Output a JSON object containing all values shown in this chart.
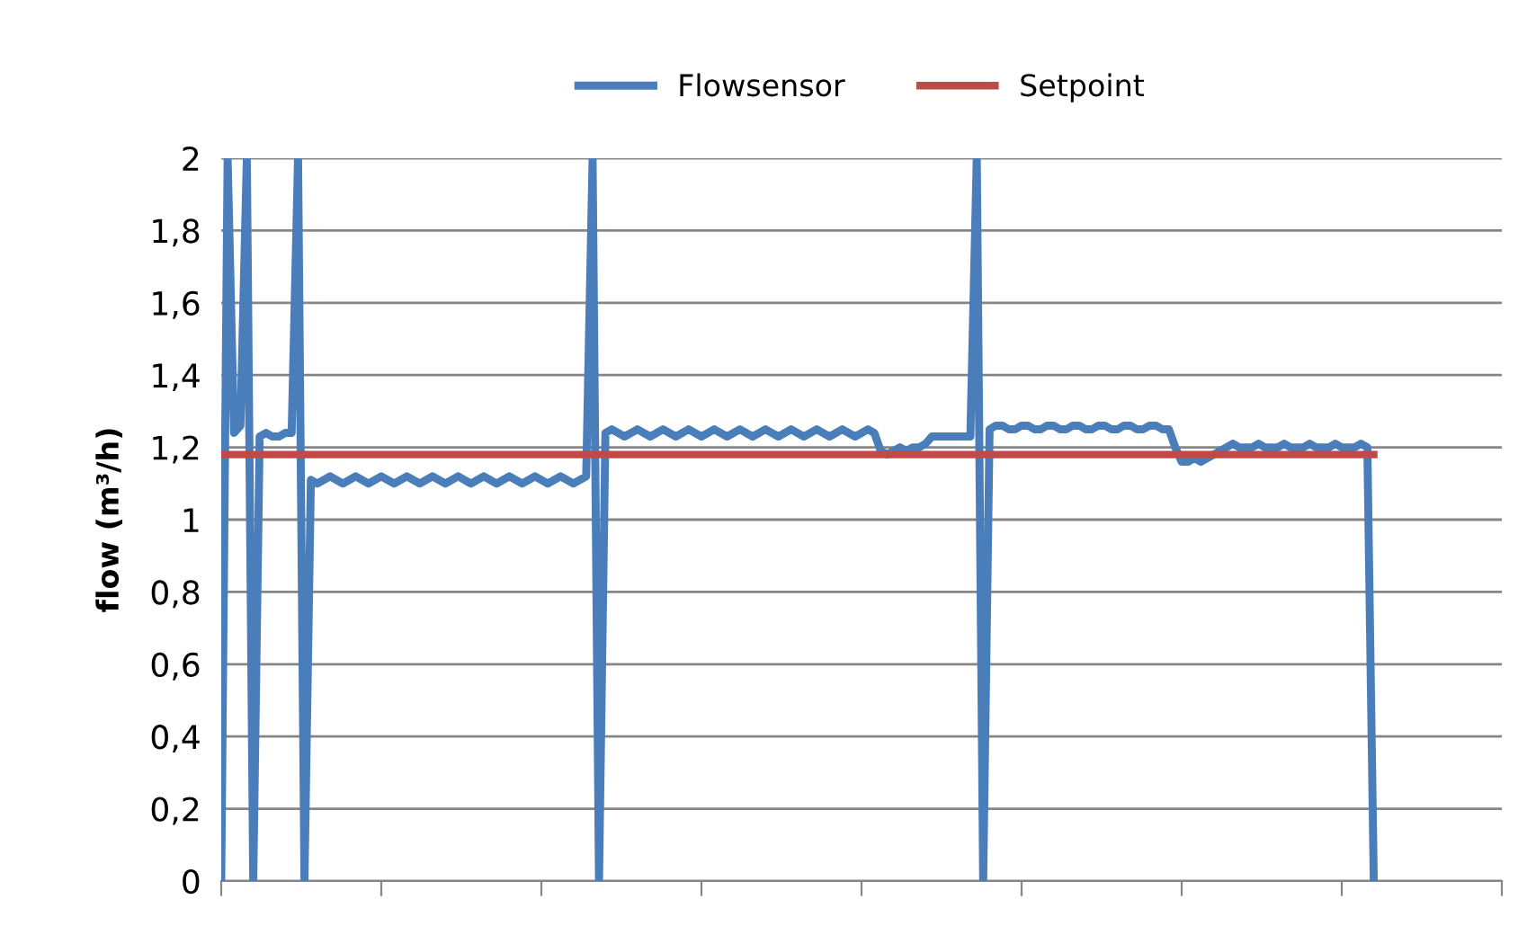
{
  "chart_data": {
    "type": "line",
    "ylabel": "flow (m³/h)",
    "categories": [
      null,
      null,
      null,
      null,
      null,
      null,
      null,
      null,
      null,
      null,
      null,
      null,
      null,
      null,
      null,
      null,
      null,
      null,
      null,
      null,
      null,
      null,
      null,
      null,
      null,
      null,
      null,
      null,
      null,
      null,
      null,
      null,
      null,
      null,
      null,
      null,
      null,
      null,
      null,
      null,
      null,
      null,
      null,
      null,
      null,
      null,
      null,
      null,
      null,
      null,
      null,
      null,
      null,
      null,
      null,
      null,
      null,
      null,
      null,
      null,
      null,
      null,
      null,
      null,
      null,
      null,
      null,
      null,
      null,
      null,
      null,
      null,
      null,
      null,
      null,
      null,
      null,
      null,
      null,
      null,
      null,
      null,
      null,
      null,
      null,
      null,
      null,
      null,
      null,
      null,
      null,
      null,
      null,
      null,
      null,
      null,
      null,
      null,
      null,
      null,
      null,
      null,
      null,
      null,
      null,
      null,
      null,
      null,
      null,
      null,
      null,
      null,
      null,
      null,
      null,
      null,
      null,
      null,
      null,
      null,
      null,
      null,
      null,
      null,
      null,
      null,
      null,
      null,
      null,
      null,
      null,
      null,
      null,
      null,
      null,
      null,
      null,
      null,
      null,
      null,
      null,
      null,
      null,
      null,
      null,
      null,
      null,
      null,
      null,
      null,
      null,
      null,
      null,
      null,
      null,
      null,
      null,
      null,
      null,
      null,
      null,
      null,
      null,
      null,
      null,
      null,
      null,
      null,
      null,
      null,
      null,
      null,
      null,
      null,
      null,
      null,
      null,
      null,
      null,
      null,
      null,
      null,
      null,
      null,
      null,
      null,
      null,
      null,
      null,
      null,
      null,
      null,
      null,
      null,
      null,
      null,
      null,
      null,
      null,
      null,
      null
    ],
    "series": [
      {
        "name": "Flowsensor",
        "color": "#4a7ebb",
        "values": [
          0,
          2,
          1.24,
          1.26,
          2,
          0,
          1.23,
          1.24,
          1.23,
          1.23,
          1.24,
          1.24,
          2,
          0,
          1.11,
          1.1,
          1.11,
          1.12,
          1.11,
          1.1,
          1.11,
          1.12,
          1.11,
          1.1,
          1.11,
          1.12,
          1.11,
          1.1,
          1.11,
          1.12,
          1.11,
          1.1,
          1.11,
          1.12,
          1.11,
          1.1,
          1.11,
          1.12,
          1.11,
          1.1,
          1.11,
          1.12,
          1.11,
          1.1,
          1.11,
          1.12,
          1.11,
          1.1,
          1.11,
          1.12,
          1.11,
          1.1,
          1.11,
          1.12,
          1.11,
          1.1,
          1.11,
          1.12,
          2,
          0,
          1.24,
          1.25,
          1.24,
          1.23,
          1.24,
          1.25,
          1.24,
          1.23,
          1.24,
          1.25,
          1.24,
          1.23,
          1.24,
          1.25,
          1.24,
          1.23,
          1.24,
          1.25,
          1.24,
          1.23,
          1.24,
          1.25,
          1.24,
          1.23,
          1.24,
          1.25,
          1.24,
          1.23,
          1.24,
          1.25,
          1.24,
          1.23,
          1.24,
          1.25,
          1.24,
          1.23,
          1.24,
          1.25,
          1.24,
          1.23,
          1.24,
          1.25,
          1.24,
          1.19,
          1.18,
          1.19,
          1.2,
          1.19,
          1.2,
          1.2,
          1.21,
          1.23,
          1.23,
          1.23,
          1.23,
          1.23,
          1.23,
          1.23,
          2,
          0,
          1.25,
          1.26,
          1.26,
          1.25,
          1.25,
          1.26,
          1.26,
          1.25,
          1.25,
          1.26,
          1.26,
          1.25,
          1.25,
          1.26,
          1.26,
          1.25,
          1.25,
          1.26,
          1.26,
          1.25,
          1.25,
          1.26,
          1.26,
          1.25,
          1.25,
          1.26,
          1.26,
          1.25,
          1.25,
          1.2,
          1.16,
          1.16,
          1.17,
          1.16,
          1.17,
          1.18,
          1.19,
          1.2,
          1.21,
          1.2,
          1.2,
          1.2,
          1.21,
          1.2,
          1.2,
          1.2,
          1.21,
          1.2,
          1.2,
          1.2,
          1.21,
          1.2,
          1.2,
          1.2,
          1.21,
          1.2,
          1.2,
          1.2,
          1.21,
          1.2,
          0,
          null,
          null,
          null,
          null,
          null,
          null,
          null,
          null,
          null,
          null,
          null,
          null,
          null,
          null,
          null,
          null,
          null,
          null,
          null,
          null
        ]
      },
      {
        "name": "Setpoint",
        "color": "#be4b48",
        "values": [
          1.18,
          1.18,
          1.18,
          1.18,
          1.18,
          1.18,
          1.18,
          1.18,
          1.18,
          1.18,
          1.18,
          1.18,
          1.18,
          1.18,
          1.18,
          1.18,
          1.18,
          1.18,
          1.18,
          1.18,
          1.18,
          1.18,
          1.18,
          1.18,
          1.18,
          1.18,
          1.18,
          1.18,
          1.18,
          1.18,
          1.18,
          1.18,
          1.18,
          1.18,
          1.18,
          1.18,
          1.18,
          1.18,
          1.18,
          1.18,
          1.18,
          1.18,
          1.18,
          1.18,
          1.18,
          1.18,
          1.18,
          1.18,
          1.18,
          1.18,
          1.18,
          1.18,
          1.18,
          1.18,
          1.18,
          1.18,
          1.18,
          1.18,
          1.18,
          1.18,
          1.18,
          1.18,
          1.18,
          1.18,
          1.18,
          1.18,
          1.18,
          1.18,
          1.18,
          1.18,
          1.18,
          1.18,
          1.18,
          1.18,
          1.18,
          1.18,
          1.18,
          1.18,
          1.18,
          1.18,
          1.18,
          1.18,
          1.18,
          1.18,
          1.18,
          1.18,
          1.18,
          1.18,
          1.18,
          1.18,
          1.18,
          1.18,
          1.18,
          1.18,
          1.18,
          1.18,
          1.18,
          1.18,
          1.18,
          1.18,
          1.18,
          1.18,
          1.18,
          1.18,
          1.18,
          1.18,
          1.18,
          1.18,
          1.18,
          1.18,
          1.18,
          1.18,
          1.18,
          1.18,
          1.18,
          1.18,
          1.18,
          1.18,
          1.18,
          1.18,
          1.18,
          1.18,
          1.18,
          1.18,
          1.18,
          1.18,
          1.18,
          1.18,
          1.18,
          1.18,
          1.18,
          1.18,
          1.18,
          1.18,
          1.18,
          1.18,
          1.18,
          1.18,
          1.18,
          1.18,
          1.18,
          1.18,
          1.18,
          1.18,
          1.18,
          1.18,
          1.18,
          1.18,
          1.18,
          1.18,
          1.18,
          1.18,
          1.18,
          1.18,
          1.18,
          1.18,
          1.18,
          1.18,
          1.18,
          1.18,
          1.18,
          1.18,
          1.18,
          1.18,
          1.18,
          1.18,
          1.18,
          1.18,
          1.18,
          1.18,
          1.18,
          1.18,
          1.18,
          1.18,
          1.18,
          1.18,
          1.18,
          1.18,
          1.18,
          1.18,
          1.18,
          null,
          null,
          null,
          null,
          null,
          null,
          null,
          null,
          null,
          null,
          null,
          null,
          null,
          null,
          null,
          null,
          null,
          null,
          null,
          null
        ]
      }
    ],
    "ylim": [
      0,
      2
    ],
    "yticks": [
      0,
      {
        "value": 0.2,
        "label": "0,2"
      },
      {
        "value": 0.4,
        "label": "0,4"
      },
      {
        "value": 0.6,
        "label": "0,6"
      },
      {
        "value": 0.8,
        "label": "0,8"
      },
      1,
      {
        "value": 1.2,
        "label": "1,2"
      },
      {
        "value": 1.4,
        "label": "1,4"
      },
      {
        "value": 1.6,
        "label": "1,6"
      },
      {
        "value": 1.8,
        "label": "1,8"
      },
      2
    ],
    "grid": "y",
    "legend": "top",
    "tick_labels": "y",
    "marker": "none",
    "line_style": "solid"
  }
}
